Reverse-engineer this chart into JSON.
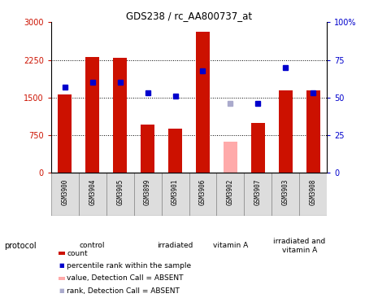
{
  "title": "GDS238 / rc_AA800737_at",
  "samples": [
    "GSM3900",
    "GSM3904",
    "GSM3905",
    "GSM3899",
    "GSM3901",
    "GSM3906",
    "GSM3902",
    "GSM3907",
    "GSM3903",
    "GSM3908"
  ],
  "counts": [
    1570,
    2310,
    2290,
    970,
    880,
    2820,
    null,
    1000,
    1640,
    1640
  ],
  "counts_absent": [
    null,
    null,
    null,
    null,
    null,
    null,
    620,
    null,
    null,
    null
  ],
  "ranks": [
    57,
    60,
    60,
    53,
    51,
    68,
    null,
    46,
    70,
    53
  ],
  "ranks_absent": [
    null,
    null,
    null,
    null,
    null,
    null,
    46,
    null,
    null,
    null
  ],
  "bar_color": "#cc1100",
  "bar_absent_color": "#ffaaaa",
  "dot_color": "#0000cc",
  "dot_absent_color": "#aaaacc",
  "ylim_left": [
    0,
    3000
  ],
  "ylim_right": [
    0,
    100
  ],
  "yticks_left": [
    0,
    750,
    1500,
    2250,
    3000
  ],
  "ytick_labels_left": [
    "0",
    "750",
    "1500",
    "2250",
    "3000"
  ],
  "yticks_right": [
    0,
    25,
    50,
    75,
    100
  ],
  "ytick_labels_right": [
    "0",
    "25",
    "50",
    "75",
    "100%"
  ],
  "groups": [
    {
      "label": "control",
      "samples": [
        "GSM3900",
        "GSM3904",
        "GSM3905"
      ],
      "color": "#ccffcc"
    },
    {
      "label": "irradiated",
      "samples": [
        "GSM3899",
        "GSM3901",
        "GSM3906"
      ],
      "color": "#aaffaa"
    },
    {
      "label": "vitamin A",
      "samples": [
        "GSM3902"
      ],
      "color": "#88ee88"
    },
    {
      "label": "irradiated and\nvitamin A",
      "samples": [
        "GSM3903",
        "GSM3908"
      ],
      "color": "#77dd77"
    }
  ],
  "protocol_label": "protocol",
  "legend_items": [
    {
      "label": "count",
      "color": "#cc1100",
      "type": "rect"
    },
    {
      "label": "percentile rank within the sample",
      "color": "#0000cc",
      "type": "square"
    },
    {
      "label": "value, Detection Call = ABSENT",
      "color": "#ffaaaa",
      "type": "rect"
    },
    {
      "label": "rank, Detection Call = ABSENT",
      "color": "#aaaacc",
      "type": "square"
    }
  ],
  "fig_width": 4.65,
  "fig_height": 3.66,
  "fig_dpi": 100
}
